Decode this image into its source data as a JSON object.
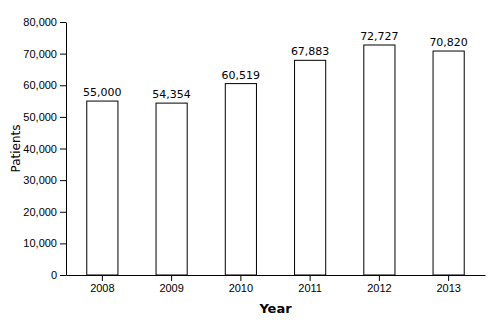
{
  "chart_data": {
    "type": "bar",
    "categories": [
      "2008",
      "2009",
      "2010",
      "2011",
      "2012",
      "2013"
    ],
    "values": [
      55000,
      54354,
      60519,
      67883,
      72727,
      70820
    ],
    "value_labels": [
      "55,000",
      "54,354",
      "60,519",
      "67,883",
      "72,727",
      "70,820"
    ],
    "data_labels": true,
    "color": "#ffffff",
    "xlabel": "Year",
    "ylabel": "Patients",
    "ylim": [
      0,
      80000
    ],
    "yticks": [
      0,
      {
        "value": 10000,
        "label": "10,000"
      },
      {
        "value": 20000,
        "label": "20,000"
      },
      {
        "value": 30000,
        "label": "30,000"
      },
      {
        "value": 40000,
        "label": "40,000"
      },
      {
        "value": 50000,
        "label": "50,000"
      },
      {
        "value": 60000,
        "label": "60,000"
      },
      {
        "value": 70000,
        "label": "70,000"
      },
      {
        "value": 80000,
        "label": "80,000"
      }
    ],
    "grid": false
  }
}
